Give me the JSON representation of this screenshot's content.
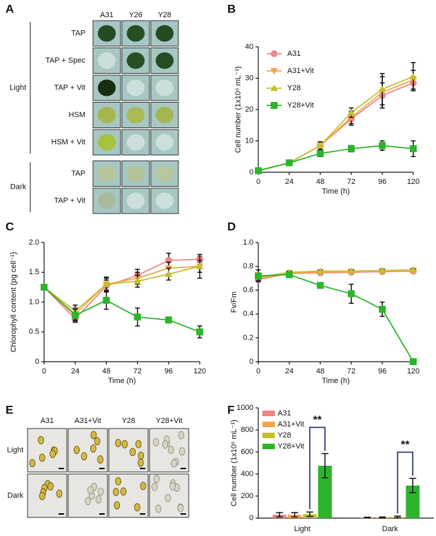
{
  "panel_a": {
    "label": "A",
    "columns": [
      "A31",
      "Y26",
      "Y28"
    ],
    "groups": [
      {
        "name": "Light",
        "rows": [
          "TAP",
          "TAP + Spec",
          "TAP + Vit",
          "HSM",
          "HSM + Vit"
        ]
      },
      {
        "name": "Dark",
        "rows": [
          "TAP",
          "TAP + Vit"
        ]
      }
    ]
  },
  "panel_e": {
    "label": "E",
    "columns": [
      "A31",
      "A31+Vit",
      "Y28",
      "Y28+Vit"
    ],
    "rows": [
      "Light",
      "Dark"
    ]
  },
  "chart_data": [
    {
      "type": "line",
      "panel_label": "B",
      "xlabel": "Time (h)",
      "ylabel": "Cell number (1x10⁶ mL⁻¹)",
      "x": [
        0,
        24,
        48,
        72,
        96,
        120
      ],
      "xlim": [
        0,
        120
      ],
      "xticks": [
        0,
        24,
        48,
        72,
        96,
        120
      ],
      "ylim": [
        0,
        40
      ],
      "yticks": [
        0,
        10,
        20,
        30,
        40
      ],
      "legend": "upper left",
      "series": [
        {
          "name": "A31",
          "color": "#ef8585",
          "marker": "circle",
          "values": [
            0.5,
            3,
            8.5,
            17,
            24.5,
            28.5
          ],
          "errors": [
            0.3,
            0.8,
            1.2,
            2,
            4,
            2
          ]
        },
        {
          "name": "A31+Vit",
          "color": "#f5a548",
          "marker": "triangle-down",
          "values": [
            0.5,
            3,
            8.5,
            17.5,
            25.5,
            29.5
          ],
          "errors": [
            0.3,
            0.8,
            1.2,
            2,
            5,
            3
          ]
        },
        {
          "name": "Y28",
          "color": "#c4c02e",
          "marker": "triangle-up",
          "values": [
            0.5,
            3,
            8.5,
            19,
            26.5,
            30.5
          ],
          "errors": [
            0.3,
            0.8,
            1.2,
            1.5,
            5,
            4.5
          ]
        },
        {
          "name": "Y28+Vit",
          "color": "#2cb52c",
          "marker": "square",
          "values": [
            0.5,
            3,
            6,
            7.5,
            8.5,
            7.5
          ],
          "errors": [
            0.2,
            0.5,
            1,
            1,
            1.5,
            2.5
          ]
        }
      ]
    },
    {
      "type": "line",
      "panel_label": "C",
      "xlabel": "Time (h)",
      "ylabel": "Chlorophyll content (pg cell⁻¹)",
      "x": [
        0,
        24,
        48,
        72,
        96,
        120
      ],
      "xlim": [
        0,
        120
      ],
      "xticks": [
        0,
        24,
        48,
        72,
        96,
        120
      ],
      "ylim": [
        0,
        2
      ],
      "yticks": [
        0,
        0.5,
        {
          "value": 1,
          "label": "1.0"
        },
        1.5,
        {
          "value": 2,
          "label": "2.0"
        }
      ],
      "series": [
        {
          "name": "A31",
          "color": "#ef8585",
          "marker": "circle",
          "values": [
            1.25,
            0.72,
            1.27,
            1.45,
            1.7,
            1.72
          ],
          "errors": [
            0,
            0.06,
            0.1,
            0.1,
            0.12,
            0.05
          ]
        },
        {
          "name": "A31+Vit",
          "color": "#f5a548",
          "marker": "triangle-down",
          "values": [
            1.25,
            0.8,
            1.3,
            1.4,
            1.57,
            1.6
          ],
          "errors": [
            0,
            0.1,
            0.1,
            0.1,
            0.1,
            0.1
          ]
        },
        {
          "name": "Y28",
          "color": "#c4c02e",
          "marker": "triangle-up",
          "values": [
            1.25,
            0.85,
            1.3,
            1.35,
            1.47,
            1.6
          ],
          "errors": [
            0,
            0.1,
            0.12,
            0.1,
            0.1,
            0.2
          ]
        },
        {
          "name": "Y28+Vit",
          "color": "#2cb52c",
          "marker": "square",
          "values": [
            1.25,
            0.78,
            1.03,
            0.75,
            0.7,
            0.5
          ],
          "errors": [
            0,
            0.1,
            0.15,
            0.15,
            0.05,
            0.1
          ]
        }
      ]
    },
    {
      "type": "line",
      "panel_label": "D",
      "xlabel": "Time (h)",
      "ylabel": "Fv/Fm",
      "x": [
        0,
        24,
        48,
        72,
        96,
        120
      ],
      "xlim": [
        0,
        120
      ],
      "xticks": [
        0,
        24,
        48,
        72,
        96,
        120
      ],
      "ylim": [
        0,
        1
      ],
      "yticks": [
        0,
        0.2,
        0.4,
        0.6,
        0.8,
        {
          "value": 1,
          "label": "1.0"
        }
      ],
      "series": [
        {
          "name": "A31",
          "color": "#ef8585",
          "marker": "circle",
          "values": [
            0.69,
            0.74,
            0.745,
            0.75,
            0.755,
            0.76
          ],
          "errors": [
            0.02,
            0.01,
            0.01,
            0.01,
            0.01,
            0.01
          ]
        },
        {
          "name": "A31+Vit",
          "color": "#f5a548",
          "marker": "triangle-down",
          "values": [
            0.7,
            0.745,
            0.75,
            0.755,
            0.76,
            0.765
          ],
          "errors": [
            0.02,
            0.01,
            0.01,
            0.01,
            0.01,
            0.01
          ]
        },
        {
          "name": "Y28",
          "color": "#c4c02e",
          "marker": "triangle-up",
          "values": [
            0.71,
            0.75,
            0.76,
            0.76,
            0.765,
            0.77
          ],
          "errors": [
            0.02,
            0.01,
            0.01,
            0.01,
            0.01,
            0.01
          ]
        },
        {
          "name": "Y28+Vit",
          "color": "#2cb52c",
          "marker": "square",
          "values": [
            0.72,
            0.73,
            0.64,
            0.57,
            0.44,
            0
          ],
          "errors": [
            0.05,
            0,
            0.01,
            0.08,
            0.06,
            0
          ]
        }
      ]
    },
    {
      "type": "bar",
      "panel_label": "F",
      "ylabel": "Cell number (1x10⁶ mL⁻¹)",
      "categories": [
        "Light",
        "Dark"
      ],
      "ylim": [
        0,
        1000
      ],
      "yticks": [
        0,
        200,
        400,
        600,
        800,
        1000
      ],
      "legend": "upper left",
      "annotations": [
        "**",
        "**"
      ],
      "series": [
        {
          "name": "A31",
          "color": "#f08282",
          "values": [
            30,
            5
          ],
          "errors": [
            20,
            3
          ]
        },
        {
          "name": "A31+Vit",
          "color": "#f5a548",
          "values": [
            30,
            5
          ],
          "errors": [
            20,
            5
          ]
        },
        {
          "name": "Y28",
          "color": "#c4c02e",
          "values": [
            35,
            10
          ],
          "errors": [
            20,
            8
          ]
        },
        {
          "name": "Y28+Vit",
          "color": "#2cb52c",
          "values": [
            475,
            295
          ],
          "errors": [
            110,
            65
          ]
        }
      ]
    }
  ]
}
